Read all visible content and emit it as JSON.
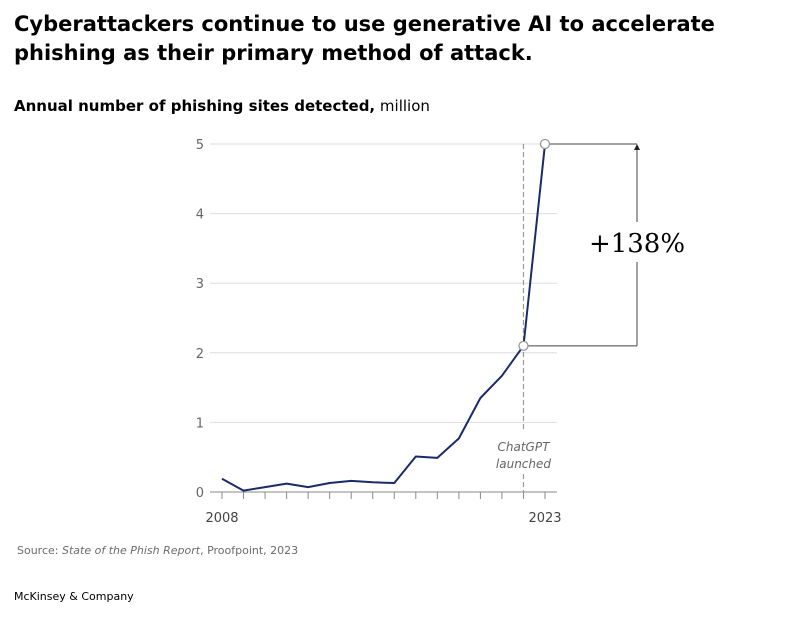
{
  "title": "Cyberattackers continue to use generative AI to accelerate phishing as their primary method of attack.",
  "subtitle": {
    "main": "Annual number of phishing sites detected,",
    "unit": "million"
  },
  "source": {
    "prefix": "Source: ",
    "report": "State of the Phish Report",
    "suffix": ", Proofpoint, 2023"
  },
  "brand": "McKinsey & Company",
  "colors": {
    "line": "#1b2a6b",
    "grid": "#dddddd",
    "axis": "#888888",
    "marker": "#999999"
  },
  "chart_data": {
    "type": "line",
    "x": [
      2008,
      2009,
      2010,
      2011,
      2012,
      2013,
      2014,
      2015,
      2016,
      2017,
      2018,
      2019,
      2020,
      2021,
      2022,
      2023
    ],
    "series": [
      {
        "values": [
          0.19,
          0.02,
          0.07,
          0.12,
          0.07,
          0.13,
          0.16,
          0.14,
          0.13,
          0.51,
          0.49,
          0.77,
          1.35,
          1.67,
          2.1,
          5.0
        ]
      }
    ],
    "x_tick_labels": [
      "2008",
      "2023"
    ],
    "y_ticks": [
      0,
      1,
      2,
      3,
      4,
      5
    ],
    "ylim": [
      0,
      5
    ],
    "xlim": [
      2008,
      2023
    ],
    "grid": true,
    "annotations": {
      "event_line": {
        "x": 2022,
        "label_line1": "ChatGPT",
        "label_line2": "launched"
      },
      "change": {
        "label": "+138%",
        "from_x": 2022,
        "from_value": 2.1,
        "to_x": 2023,
        "to_value": 5.0
      }
    }
  }
}
